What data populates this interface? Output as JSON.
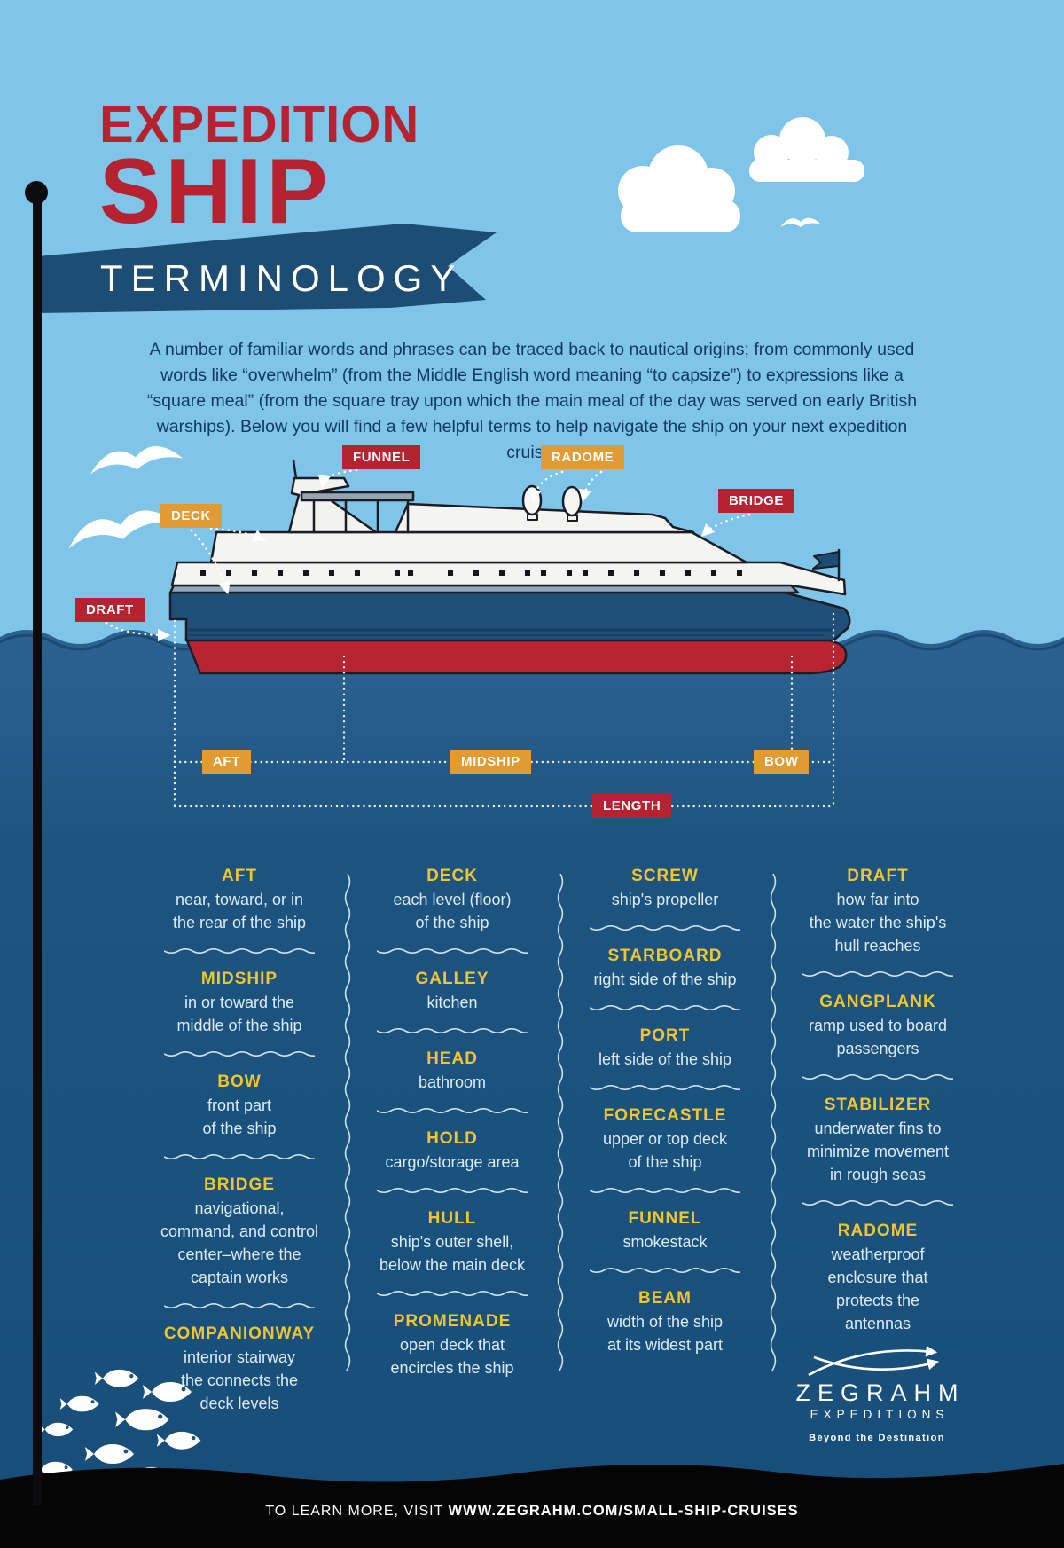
{
  "title": {
    "line1": "EXPEDITION",
    "line2": "SHIP",
    "banner": "TERMINOLOGY"
  },
  "intro": {
    "text": "A number of familiar words and phrases can be traced back to nautical origins; from commonly used words like “overwhelm” (from the Middle English word meaning “to capsize”) to expressions like a “square meal” (from the square tray upon which the main meal of the day was served on early British warships). Below you will find a few helpful terms to help navigate the ship on your next expedition cruise!"
  },
  "diagram": {
    "funnel": "FUNNEL",
    "radome": "RADOME",
    "bridge": "BRIDGE",
    "deck": "DECK",
    "draft": "DRAFT",
    "aft": "AFT",
    "midship": "MIDSHIP",
    "bow": "BOW",
    "length": "LENGTH"
  },
  "glossary": {
    "columns": [
      [
        {
          "term": "AFT",
          "def": "near, toward, or in\nthe rear of the ship"
        },
        {
          "term": "MIDSHIP",
          "def": "in or toward the\nmiddle of the ship"
        },
        {
          "term": "BOW",
          "def": "front part\nof the ship"
        },
        {
          "term": "BRIDGE",
          "def": "navigational,\ncommand, and control\ncenter–where the\ncaptain works"
        },
        {
          "term": "COMPANIONWAY",
          "def": "interior stairway\nthe connects the\ndeck levels"
        }
      ],
      [
        {
          "term": "DECK",
          "def": "each level (floor)\nof the ship"
        },
        {
          "term": "GALLEY",
          "def": "kitchen"
        },
        {
          "term": "HEAD",
          "def": "bathroom"
        },
        {
          "term": "HOLD",
          "def": "cargo/storage area"
        },
        {
          "term": "HULL",
          "def": "ship's outer shell,\nbelow the main deck"
        },
        {
          "term": "PROMENADE",
          "def": "open deck that\nencircles the ship"
        }
      ],
      [
        {
          "term": "SCREW",
          "def": "ship's propeller"
        },
        {
          "term": "STARBOARD",
          "def": "right side of the ship"
        },
        {
          "term": "PORT",
          "def": "left side of the ship"
        },
        {
          "term": "FORECASTLE",
          "def": "upper or top deck\nof the ship"
        },
        {
          "term": "FUNNEL",
          "def": "smokestack"
        },
        {
          "term": "BEAM",
          "def": "width of the ship\nat its widest part"
        }
      ],
      [
        {
          "term": "DRAFT",
          "def": "how far into\nthe water the ship's\nhull reaches"
        },
        {
          "term": "GANGPLANK",
          "def": "ramp used to board\npassengers"
        },
        {
          "term": "STABILIZER",
          "def": "underwater fins to\nminimize movement\nin rough seas"
        },
        {
          "term": "RADOME",
          "def": "weatherproof\nenclosure that\nprotects the\nantennas"
        }
      ]
    ]
  },
  "logo": {
    "name": "ZEGRAHM",
    "sub": "EXPEDITIONS",
    "tagline": "Beyond the Destination"
  },
  "footer": {
    "prefix": "TO LEARN MORE, VISIT ",
    "url": "WWW.ZEGRAHM.COM/SMALL-SHIP-CRUISES"
  },
  "colors": {
    "red": "#b6222f",
    "orange": "#e29a33",
    "navy": "#1d4d72",
    "yellow": "#f2c52f",
    "sky": "#7ec5e9",
    "ocean": "#1a527e"
  }
}
